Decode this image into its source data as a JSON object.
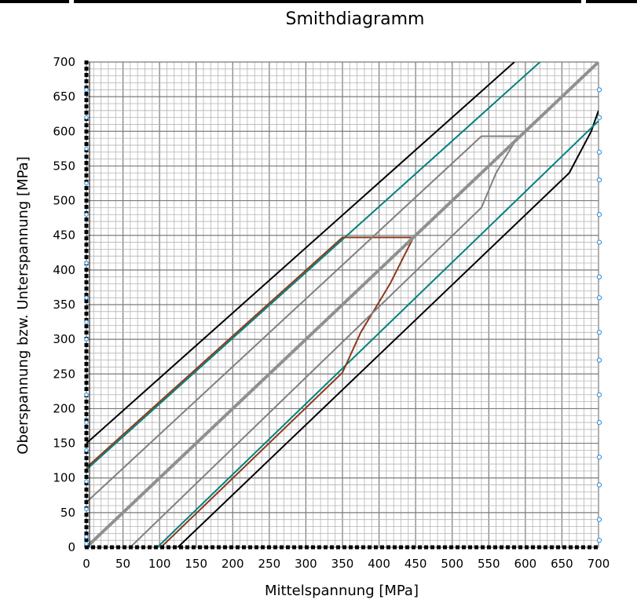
{
  "chart_data": {
    "type": "line",
    "title": "Smithdiagramm",
    "xlabel": "Mittelspannung [MPa]",
    "ylabel": "Oberspannung bzw. Unterspannung [MPa]",
    "xlim": [
      0,
      700
    ],
    "ylim": [
      0,
      700
    ],
    "xticks": [
      0,
      50,
      100,
      150,
      200,
      250,
      300,
      350,
      400,
      450,
      500,
      550,
      600,
      650,
      700
    ],
    "yticks": [
      0,
      50,
      100,
      150,
      200,
      250,
      300,
      350,
      400,
      450,
      500,
      550,
      600,
      650,
      700
    ],
    "grid": true,
    "minor_grid_step": 10,
    "legend": "none",
    "series": [
      {
        "color": "#000000",
        "width": 2,
        "x": [
          0,
          585
        ],
        "y": [
          150,
          700
        ]
      },
      {
        "color": "#000000",
        "width": 2,
        "x": [
          125,
          660,
          690,
          700
        ],
        "y": [
          0,
          540,
          600,
          630
        ]
      },
      {
        "color": "#008080",
        "width": 2,
        "x": [
          0,
          620
        ],
        "y": [
          112,
          700
        ]
      },
      {
        "color": "#008080",
        "width": 2,
        "x": [
          97,
          700
        ],
        "y": [
          0,
          615
        ]
      },
      {
        "color": "#8B3A1A",
        "width": 2,
        "x": [
          0,
          350,
          447
        ],
        "y": [
          115,
          447,
          447
        ]
      },
      {
        "color": "#8B3A1A",
        "width": 2,
        "x": [
          102,
          350,
          375,
          415,
          447
        ],
        "y": [
          0,
          252,
          310,
          380,
          447
        ]
      },
      {
        "color": "#808080",
        "width": 2,
        "x": [
          0,
          540,
          590
        ],
        "y": [
          65,
          593,
          593
        ]
      },
      {
        "color": "#808080",
        "width": 2,
        "x": [
          60,
          540,
          560,
          590
        ],
        "y": [
          0,
          490,
          540,
          593
        ]
      },
      {
        "color": "#909090",
        "width": 4,
        "x": [
          0,
          700
        ],
        "y": [
          0,
          700
        ]
      }
    ]
  }
}
